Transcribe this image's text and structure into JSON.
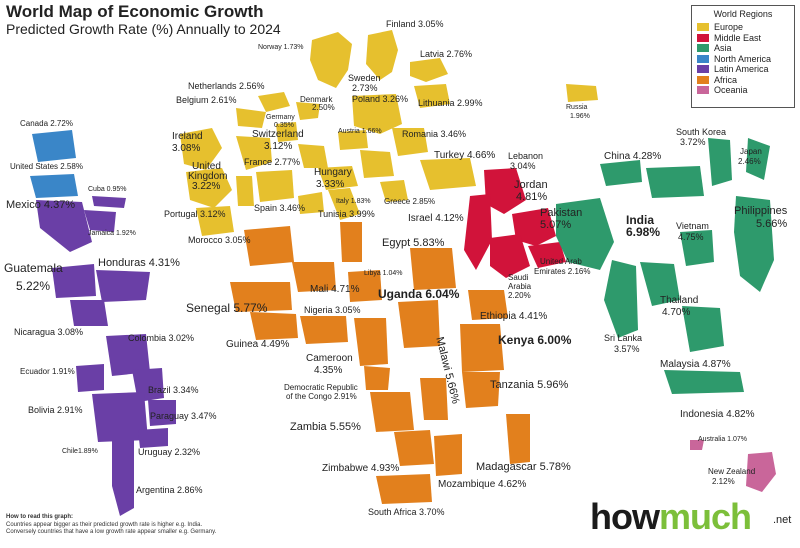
{
  "header": {
    "title": "World Map of Economic Growth",
    "subtitle": "Predicted Growth Rate (%) Annually to 2024"
  },
  "legend": {
    "title": "World Regions",
    "items": [
      {
        "label": "Europe",
        "color": "#e6c02e"
      },
      {
        "label": "Middle East",
        "color": "#d1133a"
      },
      {
        "label": "Asia",
        "color": "#2e9a6c"
      },
      {
        "label": "North America",
        "color": "#3a86c8"
      },
      {
        "label": "Latin America",
        "color": "#6a3fa6"
      },
      {
        "label": "Africa",
        "color": "#e2801d"
      },
      {
        "label": "Oceania",
        "color": "#c9669a"
      }
    ]
  },
  "regions": {
    "europe": {
      "color": "#e6c02e"
    },
    "middle_east": {
      "color": "#d1133a"
    },
    "asia": {
      "color": "#2e9a6c"
    },
    "north_america": {
      "color": "#3a86c8"
    },
    "latin_america": {
      "color": "#6a3fa6"
    },
    "africa": {
      "color": "#e2801d"
    },
    "oceania": {
      "color": "#c9669a"
    }
  },
  "countries": [
    {
      "name": "Finland",
      "growth": "3.05%"
    },
    {
      "name": "Norway",
      "growth": "1.73%"
    },
    {
      "name": "Latvia",
      "growth": "2.76%"
    },
    {
      "name": "Sweden",
      "growth": "2.73%"
    },
    {
      "name": "Netherlands",
      "growth": "2.56%"
    },
    {
      "name": "Belgium",
      "growth": "2.61%"
    },
    {
      "name": "Denmark",
      "growth": "2.50%"
    },
    {
      "name": "Poland",
      "growth": "3.26%"
    },
    {
      "name": "Lithuania",
      "growth": "2.99%"
    },
    {
      "name": "Germany",
      "growth": "0.35%"
    },
    {
      "name": "Austria",
      "growth": "1.66%"
    },
    {
      "name": "Ireland",
      "growth": "3.08%"
    },
    {
      "name": "Switzerland",
      "growth": "3.12%"
    },
    {
      "name": "Romania",
      "growth": "3.46%"
    },
    {
      "name": "United Kingdom",
      "growth": "3.22%"
    },
    {
      "name": "France",
      "growth": "2.77%"
    },
    {
      "name": "Hungary",
      "growth": "3.33%"
    },
    {
      "name": "Turkey",
      "growth": "4.66%"
    },
    {
      "name": "Portugal",
      "growth": "3.12%"
    },
    {
      "name": "Spain",
      "growth": "3.46%"
    },
    {
      "name": "Italy",
      "growth": "1.83%"
    },
    {
      "name": "Greece",
      "growth": "2.85%"
    },
    {
      "name": "Tunisia",
      "growth": "3.99%"
    },
    {
      "name": "Morocco",
      "growth": "3.05%"
    },
    {
      "name": "Russia",
      "growth": "1.96%"
    },
    {
      "name": "Lebanon",
      "growth": "3.04%"
    },
    {
      "name": "Jordan",
      "growth": "4.81%"
    },
    {
      "name": "Israel",
      "growth": "4.12%"
    },
    {
      "name": "Pakistan",
      "growth": "5.07%"
    },
    {
      "name": "United Arab Emirates",
      "growth": "2.16%"
    },
    {
      "name": "Saudi Arabia",
      "growth": "2.20%"
    },
    {
      "name": "Canada",
      "growth": "2.72%"
    },
    {
      "name": "United States",
      "growth": "2.58%"
    },
    {
      "name": "Cuba",
      "growth": "0.95%"
    },
    {
      "name": "Mexico",
      "growth": "4.37%"
    },
    {
      "name": "Jamaica",
      "growth": "1.92%"
    },
    {
      "name": "Guatemala",
      "growth": "5.22%"
    },
    {
      "name": "Honduras",
      "growth": "4.31%"
    },
    {
      "name": "Nicaragua",
      "growth": "3.08%"
    },
    {
      "name": "Colombia",
      "growth": "3.02%"
    },
    {
      "name": "Ecuador",
      "growth": "1.91%"
    },
    {
      "name": "Brazil",
      "growth": "3.34%"
    },
    {
      "name": "Bolivia",
      "growth": "2.91%"
    },
    {
      "name": "Paraguay",
      "growth": "3.47%"
    },
    {
      "name": "Chile",
      "growth": "1.89%"
    },
    {
      "name": "Uruguay",
      "growth": "2.32%"
    },
    {
      "name": "Argentina",
      "growth": "2.86%"
    },
    {
      "name": "Egypt",
      "growth": "5.83%"
    },
    {
      "name": "Libya",
      "growth": "1.04%"
    },
    {
      "name": "Mali",
      "growth": "4.71%"
    },
    {
      "name": "Uganda",
      "growth": "6.04%"
    },
    {
      "name": "Senegal",
      "growth": "5.77%"
    },
    {
      "name": "Nigeria",
      "growth": "3.05%"
    },
    {
      "name": "Ethiopia",
      "growth": "4.41%"
    },
    {
      "name": "Guinea",
      "growth": "4.49%"
    },
    {
      "name": "Cameroon",
      "growth": "4.35%"
    },
    {
      "name": "Kenya",
      "growth": "6.00%"
    },
    {
      "name": "Malawi",
      "growth": "5.66%"
    },
    {
      "name": "Democratic Republic of the Congo",
      "growth": "2.91%"
    },
    {
      "name": "Tanzania",
      "growth": "5.96%"
    },
    {
      "name": "Zambia",
      "growth": "5.55%"
    },
    {
      "name": "Zimbabwe",
      "growth": "4.93%"
    },
    {
      "name": "Madagascar",
      "growth": "5.78%"
    },
    {
      "name": "Mozambique",
      "growth": "4.62%"
    },
    {
      "name": "South Africa",
      "growth": "3.70%"
    },
    {
      "name": "South Korea",
      "growth": "3.72%"
    },
    {
      "name": "Japan",
      "growth": "2.46%"
    },
    {
      "name": "China",
      "growth": "4.28%"
    },
    {
      "name": "India",
      "growth": "6.98%"
    },
    {
      "name": "Philippines",
      "growth": "5.66%"
    },
    {
      "name": "Vietnam",
      "growth": "4.75%"
    },
    {
      "name": "Thailand",
      "growth": "4.70%"
    },
    {
      "name": "Sri Lanka",
      "growth": "3.57%"
    },
    {
      "name": "Malaysia",
      "growth": "4.87%"
    },
    {
      "name": "Indonesia",
      "growth": "4.82%"
    },
    {
      "name": "Australia",
      "growth": "1.07%"
    },
    {
      "name": "New Zealand",
      "growth": "2.12%"
    }
  ],
  "labels": {
    "finland": "Finland  3.05%",
    "norway": "Norway 1.73%",
    "latvia": "Latvia  2.76%",
    "sweden": "Sweden",
    "sweden_val": "2.73%",
    "netherlands": "Netherlands 2.56%",
    "belgium": "Belgium 2.61%",
    "denmark": "Denmark",
    "denmark_val": "2.50%",
    "poland": "Poland 3.26%",
    "lithuania": "Lithuania  2.99%",
    "germany": "Germany",
    "germany_val": "0.35%",
    "austria": "Austria 1.66%",
    "ireland": "Ireland",
    "ireland_val": "3.08%",
    "switzerland": "Switzerland",
    "switzerland_val": "3.12%",
    "romania": "Romania  3.46%",
    "uk1": "United",
    "uk2": "Kingdom",
    "uk_val": "3.22%",
    "france": "France 2.77%",
    "hungary": "Hungary",
    "hungary_val": "3.33%",
    "turkey": "Turkey  4.66%",
    "portugal": "Portugal 3.12%",
    "spain": "Spain 3.46%",
    "italy": "Italy 1.83%",
    "greece": "Greece 2.85%",
    "tunisia": "Tunisia  3.99%",
    "morocco": "Morocco 3.05%",
    "russia": "Russia",
    "russia_val": "1.96%",
    "lebanon": "Lebanon",
    "lebanon_val": "3.04%",
    "jordan": "Jordan",
    "jordan_val": "4.81%",
    "israel": "Israel 4.12%",
    "pakistan": "Pakistan",
    "pakistan_val": "5.07%",
    "uae1": "United Arab",
    "uae2": "Emirates 2.16%",
    "saudi1": "Saudi",
    "saudi2": "Arabia",
    "saudi_val": "2.20%",
    "canada": "Canada 2.72%",
    "usa": "United States 2.58%",
    "cuba": "Cuba 0.95%",
    "mexico": "Mexico 4.37%",
    "jamaica": "Jamaica 1.92%",
    "guatemala": "Guatemala",
    "guatemala_val": "5.22%",
    "honduras": "Honduras  4.31%",
    "nicaragua": "Nicaragua 3.08%",
    "colombia": "Colombia 3.02%",
    "ecuador": "Ecuador 1.91%",
    "brazil": "Brazil 3.34%",
    "bolivia": "Bolivia 2.91%",
    "paraguay": "Paraguay 3.47%",
    "chile": "Chile1.89%",
    "uruguay": "Uruguay 2.32%",
    "argentina": "Argentina  2.86%",
    "egypt": "Egypt  5.83%",
    "libya": "Libya 1.04%",
    "mali": "Mali  4.71%",
    "uganda": "Uganda 6.04%",
    "senegal": "Senegal 5.77%",
    "nigeria": "Nigeria  3.05%",
    "ethiopia": "Ethiopia 4.41%",
    "guinea": "Guinea 4.49%",
    "cameroon": "Cameroon",
    "cameroon_val": "4.35%",
    "kenya": "Kenya  6.00%",
    "malawi": "Malawi 5.66%",
    "drc1": "Democratic Republic",
    "drc2": "of the Congo 2.91%",
    "tanzania": "Tanzania  5.96%",
    "zambia": "Zambia 5.55%",
    "zimbabwe": "Zimbabwe 4.93%",
    "madagascar": "Madagascar  5.78%",
    "mozambique": "Mozambique  4.62%",
    "south_africa": "South Africa 3.70%",
    "south_korea": "South Korea",
    "south_korea_val": "3.72%",
    "japan": "Japan",
    "japan_val": "2.46%",
    "china": "China  4.28%",
    "india": "India",
    "india_val": "6.98%",
    "philippines": "Philippines",
    "philippines_val": "5.66%",
    "vietnam": "Vietnam",
    "vietnam_val": "4.75%",
    "thailand": "Thailand",
    "thailand_val": "4.70%",
    "sri_lanka": "Sri Lanka",
    "sri_lanka_val": "3.57%",
    "malaysia": "Malaysia 4.87%",
    "indonesia": "Indonesia 4.82%",
    "australia": "Australia 1.07%",
    "new_zealand": "New Zealand",
    "new_zealand_val": "2.12%"
  },
  "footer": {
    "howto_title": "How to read this graph:",
    "howto_line1": "Countries appear bigger as their predicted growth rate is higher e.g. India.",
    "howto_line2": "Conversely countries that have a low growth rate appear smaller e.g. Germany.",
    "brand_how": "how",
    "brand_much": "much",
    "brand_tld": ".net"
  }
}
